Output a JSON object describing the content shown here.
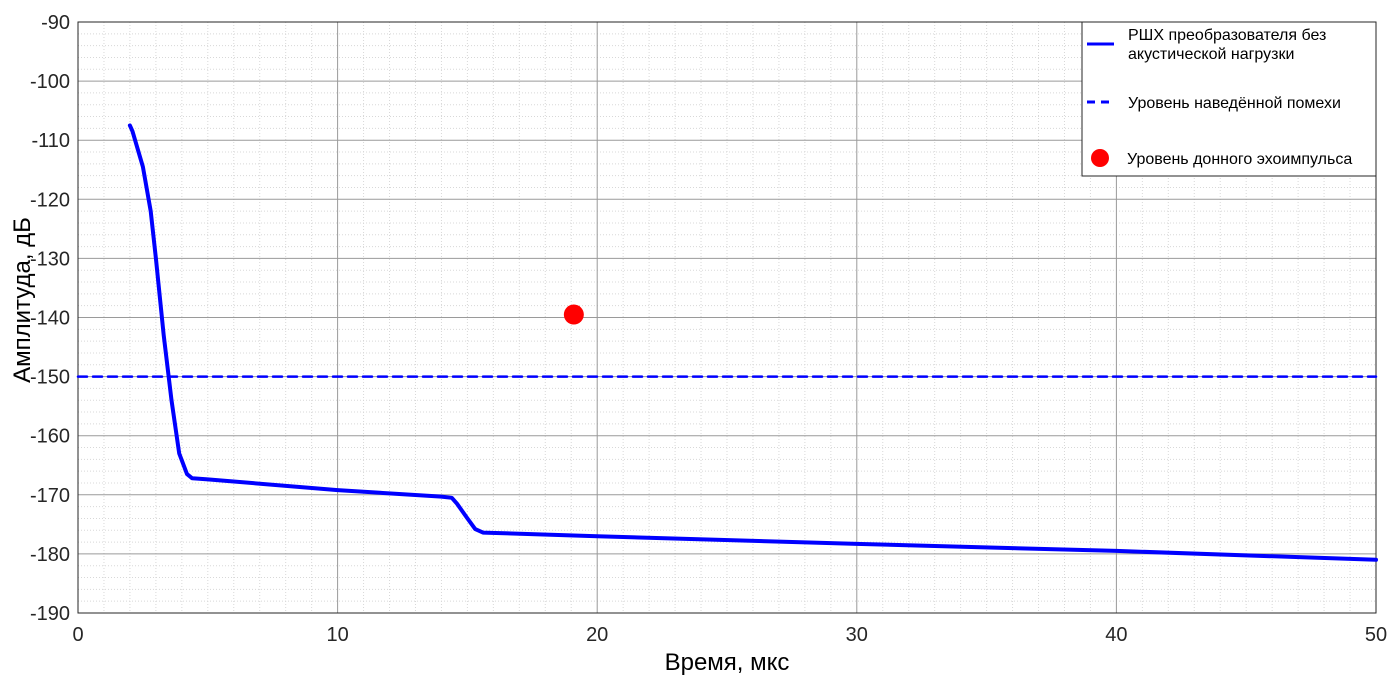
{
  "chart_data": {
    "type": "line",
    "xlabel": "Время, мкс",
    "ylabel": "Амплитуда, дБ",
    "xlim": [
      0,
      50
    ],
    "ylim": [
      -190,
      -90
    ],
    "xticks": [
      0,
      10,
      20,
      30,
      40,
      50
    ],
    "yticks": [
      -90,
      -100,
      -110,
      -120,
      -130,
      -140,
      -150,
      -160,
      -170,
      -180,
      -190
    ],
    "grid": true,
    "minor_grid": true,
    "legend_position": "top-right",
    "series": [
      {
        "name": "РШХ преобразователя без акустической нагрузки",
        "kind": "line",
        "style": "solid",
        "color": "#0000ff",
        "x": [
          2.0,
          2.1,
          2.5,
          2.8,
          3.0,
          3.3,
          3.6,
          3.9,
          4.2,
          4.4,
          5,
          10,
          14.0,
          14.4,
          14.6,
          15.0,
          15.3,
          15.6,
          20,
          30,
          40,
          50
        ],
        "y": [
          -107.5,
          -108.5,
          -114.5,
          -122,
          -130,
          -143,
          -154,
          -163,
          -166.5,
          -167.2,
          -167.4,
          -169.2,
          -170.3,
          -170.5,
          -171.5,
          -174,
          -175.8,
          -176.4,
          -177,
          -178.3,
          -179.5,
          -181
        ]
      },
      {
        "name": "Уровень наведённой помехи",
        "kind": "line",
        "style": "dashed",
        "color": "#0000ff",
        "x": [
          0,
          50
        ],
        "y": [
          -150,
          -150
        ]
      },
      {
        "name": "Уровень донного эхоимпульса",
        "kind": "scatter",
        "color": "#ff0000",
        "x": [
          19.1
        ],
        "y": [
          -139.5
        ]
      }
    ]
  }
}
